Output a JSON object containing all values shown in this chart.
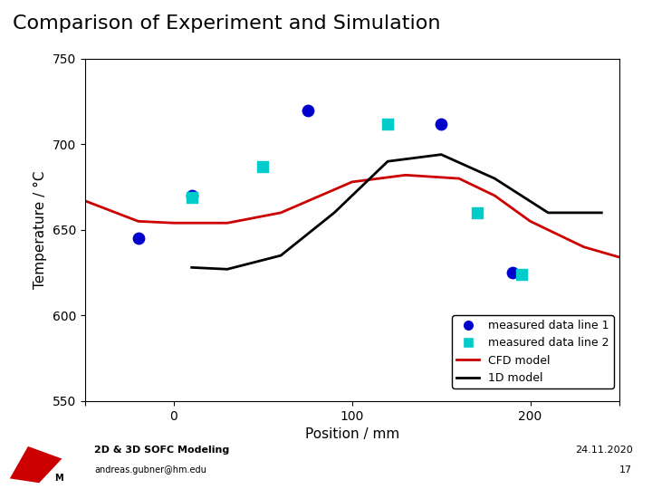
{
  "title": "Comparison of Experiment and Simulation",
  "xlabel": "Position / mm",
  "ylabel": "Temperature / °C",
  "xlim": [
    -50,
    250
  ],
  "ylim": [
    550,
    750
  ],
  "yticks": [
    550,
    600,
    650,
    700,
    750
  ],
  "xticks": [
    -50,
    0,
    100,
    200,
    250
  ],
  "xticklabels": [
    "",
    "0",
    "100",
    "200",
    ""
  ],
  "line1_x": [
    -50,
    -20,
    0,
    30,
    60,
    100,
    130,
    160,
    180,
    200,
    230,
    250
  ],
  "line1_y": [
    667,
    655,
    654,
    654,
    660,
    678,
    682,
    680,
    670,
    655,
    640,
    634
  ],
  "line1_color": "#cc0000",
  "line1_label": "CFD model",
  "line2_x": [
    10,
    30,
    60,
    90,
    120,
    150,
    180,
    210,
    240
  ],
  "line2_y": [
    628,
    627,
    635,
    660,
    690,
    694,
    680,
    660,
    660
  ],
  "line2_color": "#000000",
  "line2_label": "1D model",
  "scatter1_x": [
    -20,
    10,
    75,
    150,
    190
  ],
  "scatter1_y": [
    645,
    670,
    720,
    712,
    625
  ],
  "scatter1_color": "#0000cc",
  "scatter1_label": "measured data line 1",
  "scatter2_x": [
    10,
    50,
    120,
    170,
    195
  ],
  "scatter2_y": [
    669,
    687,
    712,
    660,
    624
  ],
  "scatter2_color": "#00cccc",
  "scatter2_label": "measured data line 2",
  "footer_left1": "2D & 3D SOFC Modeling",
  "footer_left2": "andreas.gubner@hm.edu",
  "footer_right1": "24.11.2020",
  "footer_right2": "17",
  "bg_color": "#ffffff",
  "footer_bg": "#e8e8e8",
  "logo_color": "#cc0000"
}
